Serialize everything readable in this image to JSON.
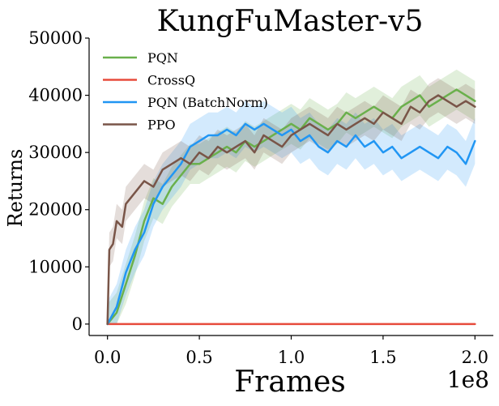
{
  "chart_data": {
    "type": "line",
    "title": "KungFuMaster-v5",
    "xlabel": "Frames",
    "ylabel": "Returns",
    "x_exponent_label": "1e8",
    "xlim": [
      -0.1,
      2.1
    ],
    "ylim": [
      -2000,
      50000
    ],
    "xticks": [
      0.0,
      0.5,
      1.0,
      1.5,
      2.0
    ],
    "xtick_labels": [
      "0.0",
      "0.5",
      "1.0",
      "1.5",
      "2.0"
    ],
    "yticks": [
      0,
      10000,
      20000,
      30000,
      40000,
      50000
    ],
    "ytick_labels": [
      "0",
      "10000",
      "20000",
      "30000",
      "40000",
      "50000"
    ],
    "grid": false,
    "legend_position": "top-left",
    "series": [
      {
        "name": "PQN",
        "color": "#6ab04c",
        "x": [
          0.0,
          0.05,
          0.1,
          0.15,
          0.2,
          0.25,
          0.3,
          0.35,
          0.4,
          0.45,
          0.5,
          0.55,
          0.6,
          0.65,
          0.7,
          0.75,
          0.8,
          0.85,
          0.9,
          0.95,
          1.0,
          1.05,
          1.1,
          1.15,
          1.2,
          1.25,
          1.3,
          1.35,
          1.4,
          1.45,
          1.5,
          1.55,
          1.6,
          1.65,
          1.7,
          1.75,
          1.8,
          1.85,
          1.9,
          1.95,
          2.0
        ],
        "y": [
          0,
          2000,
          7000,
          12000,
          18000,
          22000,
          21000,
          24000,
          26000,
          28000,
          28000,
          29000,
          30000,
          31000,
          30000,
          32000,
          31000,
          32000,
          33000,
          34000,
          35000,
          34000,
          36000,
          35000,
          34000,
          35000,
          37000,
          36000,
          37000,
          38000,
          37000,
          36000,
          38000,
          39000,
          40000,
          38000,
          39000,
          40000,
          41000,
          40000,
          39000
        ],
        "band": 3500
      },
      {
        "name": "CrossQ",
        "color": "#e74c3c",
        "x": [
          0.0,
          2.0
        ],
        "y": [
          0,
          0
        ],
        "band": 0
      },
      {
        "name": "PQN (BatchNorm)",
        "color": "#2196f3",
        "x": [
          0.0,
          0.05,
          0.1,
          0.15,
          0.2,
          0.25,
          0.3,
          0.35,
          0.4,
          0.45,
          0.5,
          0.55,
          0.6,
          0.65,
          0.7,
          0.75,
          0.8,
          0.85,
          0.9,
          0.95,
          1.0,
          1.05,
          1.1,
          1.15,
          1.2,
          1.25,
          1.3,
          1.35,
          1.4,
          1.45,
          1.5,
          1.55,
          1.6,
          1.65,
          1.7,
          1.75,
          1.8,
          1.85,
          1.9,
          1.95,
          2.0
        ],
        "y": [
          0,
          3000,
          9000,
          13000,
          16000,
          21000,
          24000,
          26000,
          28000,
          31000,
          32000,
          33000,
          33000,
          34000,
          33000,
          35000,
          34000,
          35000,
          34000,
          33000,
          34000,
          32000,
          33000,
          31000,
          30000,
          32000,
          31000,
          33000,
          31000,
          32000,
          30000,
          31000,
          29000,
          30000,
          31000,
          30000,
          29000,
          31000,
          30000,
          28000,
          32000
        ],
        "band": 4000
      },
      {
        "name": "PPO",
        "color": "#795548",
        "x": [
          0.0,
          0.01,
          0.03,
          0.05,
          0.08,
          0.1,
          0.15,
          0.2,
          0.25,
          0.3,
          0.35,
          0.4,
          0.45,
          0.5,
          0.55,
          0.6,
          0.65,
          0.7,
          0.75,
          0.8,
          0.85,
          0.9,
          0.95,
          1.0,
          1.05,
          1.1,
          1.15,
          1.2,
          1.25,
          1.3,
          1.35,
          1.4,
          1.45,
          1.5,
          1.55,
          1.6,
          1.65,
          1.7,
          1.75,
          1.8,
          1.85,
          1.9,
          1.95,
          2.0
        ],
        "y": [
          0,
          13000,
          14000,
          18000,
          17000,
          21000,
          23000,
          25000,
          24000,
          27000,
          28000,
          29000,
          28000,
          30000,
          29000,
          31000,
          30000,
          31000,
          32000,
          30000,
          33000,
          32000,
          31000,
          33000,
          34000,
          35000,
          34000,
          33000,
          35000,
          34000,
          35000,
          36000,
          35000,
          37000,
          36000,
          35000,
          38000,
          37000,
          39000,
          40000,
          39000,
          38000,
          39000,
          38000
        ],
        "band": 3000
      }
    ]
  }
}
